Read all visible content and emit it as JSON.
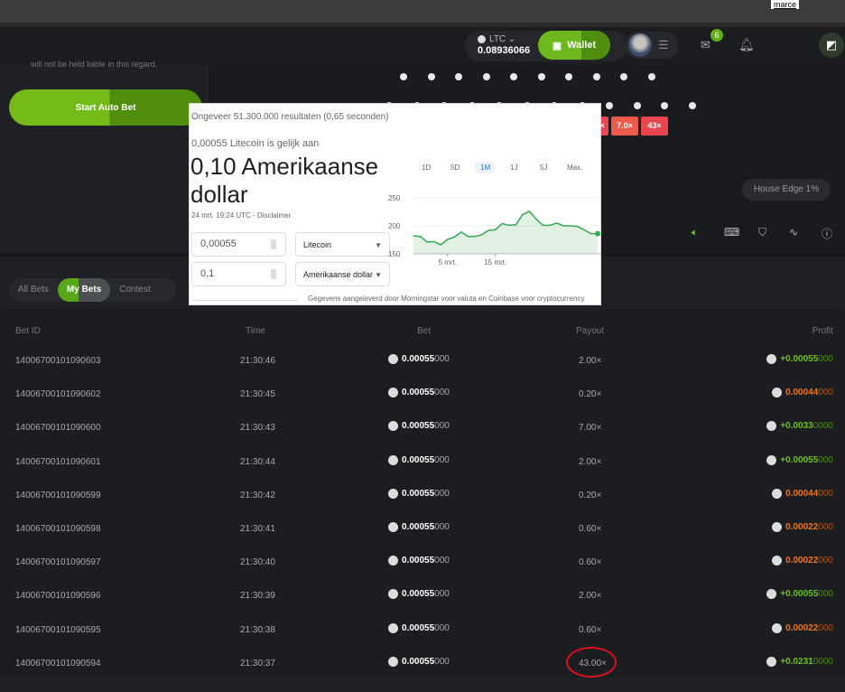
{
  "browser": {
    "user_label": "marce"
  },
  "header": {
    "currency": "LTC",
    "balance": "0.08936066",
    "wallet_label": "Wallet",
    "mail_count": "6"
  },
  "left": {
    "liable_text": "will not be held liable in this regard.",
    "auto_bet_label": "Start Auto Bet"
  },
  "game": {
    "multipliers": [
      "×",
      "7.0×",
      "43×"
    ],
    "house_edge": "House Edge 1%"
  },
  "tabs": [
    {
      "label": "All Bets"
    },
    {
      "label": "My Bets",
      "active": true
    },
    {
      "label": "Contest"
    }
  ],
  "table": {
    "headers": {
      "id": "Bet ID",
      "time": "Time",
      "bet": "Bet",
      "payout": "Payout",
      "profit": "Profit"
    },
    "rows": [
      {
        "id": "14006700101090603",
        "time": "21:30:46",
        "bet_main": "0.00055",
        "bet_tail": "000",
        "payout": "2.00×",
        "profit_main": "+0.00055",
        "profit_tail": "000",
        "win": true
      },
      {
        "id": "14006700101090602",
        "time": "21:30:45",
        "bet_main": "0.00055",
        "bet_tail": "000",
        "payout": "0.20×",
        "profit_main": "0.00044",
        "profit_tail": "000",
        "win": false
      },
      {
        "id": "14006700101090600",
        "time": "21:30:43",
        "bet_main": "0.00055",
        "bet_tail": "000",
        "payout": "7.00×",
        "profit_main": "+0.0033",
        "profit_tail": "0000",
        "win": true
      },
      {
        "id": "14006700101090601",
        "time": "21:30:44",
        "bet_main": "0.00055",
        "bet_tail": "000",
        "payout": "2.00×",
        "profit_main": "+0.00055",
        "profit_tail": "000",
        "win": true
      },
      {
        "id": "14006700101090599",
        "time": "21:30:42",
        "bet_main": "0.00055",
        "bet_tail": "000",
        "payout": "0.20×",
        "profit_main": "0.00044",
        "profit_tail": "000",
        "win": false
      },
      {
        "id": "14006700101090598",
        "time": "21:30:41",
        "bet_main": "0.00055",
        "bet_tail": "000",
        "payout": "0.60×",
        "profit_main": "0.00022",
        "profit_tail": "000",
        "win": false
      },
      {
        "id": "14006700101090597",
        "time": "21:30:40",
        "bet_main": "0.00055",
        "bet_tail": "000",
        "payout": "0.60×",
        "profit_main": "0.00022",
        "profit_tail": "000",
        "win": false
      },
      {
        "id": "14006700101090596",
        "time": "21:30:39",
        "bet_main": "0.00055",
        "bet_tail": "000",
        "payout": "2.00×",
        "profit_main": "+0.00055",
        "profit_tail": "000",
        "win": true
      },
      {
        "id": "14006700101090595",
        "time": "21:30:38",
        "bet_main": "0.00055",
        "bet_tail": "000",
        "payout": "0.60×",
        "profit_main": "0.00022",
        "profit_tail": "000",
        "win": false
      },
      {
        "id": "14006700101090594",
        "time": "21:30:37",
        "bet_main": "0.00055",
        "bet_tail": "000",
        "payout": "43.00×",
        "profit_main": "+0.0231",
        "profit_tail": "0000",
        "win": true
      }
    ]
  },
  "google": {
    "results": "Ongeveer 51.300.000 resultaten (0,65 seconden)",
    "subtitle": "0,00055 Litecoin is gelijk aan",
    "result": "0,10 Amerikaanse dollar",
    "date": "24 mrt. 19:24 UTC · Disclaimer",
    "from_value": "0,00055",
    "from_currency": "Litecoin",
    "to_value": "0,1",
    "to_currency": "Amerikaanse dollar",
    "ranges": [
      "1D",
      "5D",
      "1M",
      "1J",
      "5J",
      "Max."
    ],
    "active_range": "1M",
    "footer": "Gegevens aangeleverd door Morningstar voor valuta en Coinbase voor cryptocurrency"
  },
  "chart_data": {
    "type": "area",
    "yticks": [
      150,
      200,
      250
    ],
    "ylim": [
      150,
      250
    ],
    "xtick_labels": [
      "5 mrt.",
      "15 mrt."
    ],
    "values": [
      182,
      181,
      171,
      172,
      166,
      176,
      180,
      189,
      181,
      181,
      184,
      192,
      193,
      204,
      201,
      202,
      220,
      226,
      212,
      201,
      201,
      205,
      200,
      200,
      199,
      193,
      186,
      186
    ],
    "color": "#34a853"
  }
}
